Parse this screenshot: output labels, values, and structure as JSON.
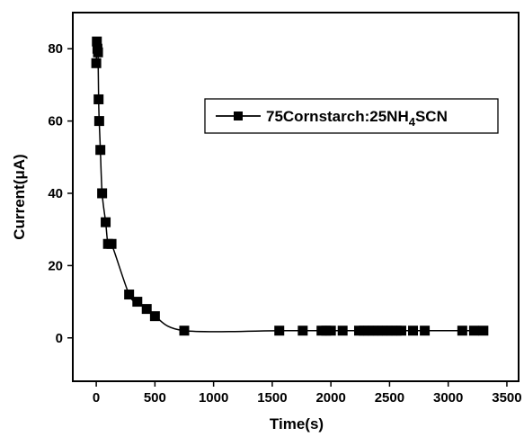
{
  "chart_data": {
    "type": "line",
    "xlabel": "Time(s)",
    "ylabel": "Current(μA)",
    "xlim": [
      -200,
      3600
    ],
    "ylim": [
      -12,
      90
    ],
    "xticks": [
      0,
      500,
      1000,
      1500,
      2000,
      2500,
      3000,
      3500
    ],
    "yticks": [
      0,
      20,
      40,
      60,
      80
    ],
    "grid": false,
    "legend": "center-right",
    "legend_label": {
      "prefix": "75Cornstarch:25NH",
      "subscript": "4",
      "suffix": "SCN"
    },
    "series": [
      {
        "name": "75Cornstarch:25NH4SCN",
        "marker": "square",
        "color": "#000000",
        "x": [
          0,
          5,
          10,
          15,
          20,
          25,
          35,
          50,
          80,
          100,
          130,
          280,
          350,
          430,
          500,
          750,
          1560,
          1760,
          1920,
          1960,
          2000,
          2100,
          2240,
          2280,
          2320,
          2360,
          2400,
          2440,
          2480,
          2520,
          2560,
          2600,
          2700,
          2800,
          3120,
          3220,
          3300
        ],
        "y": [
          76,
          82,
          80,
          79,
          66,
          60,
          52,
          40,
          32,
          26,
          26,
          12,
          10,
          8,
          6,
          2,
          2,
          2,
          2,
          2,
          2,
          2,
          2,
          2,
          2,
          2,
          2,
          2,
          2,
          2,
          2,
          2,
          2,
          2,
          2,
          2,
          2
        ]
      }
    ]
  }
}
